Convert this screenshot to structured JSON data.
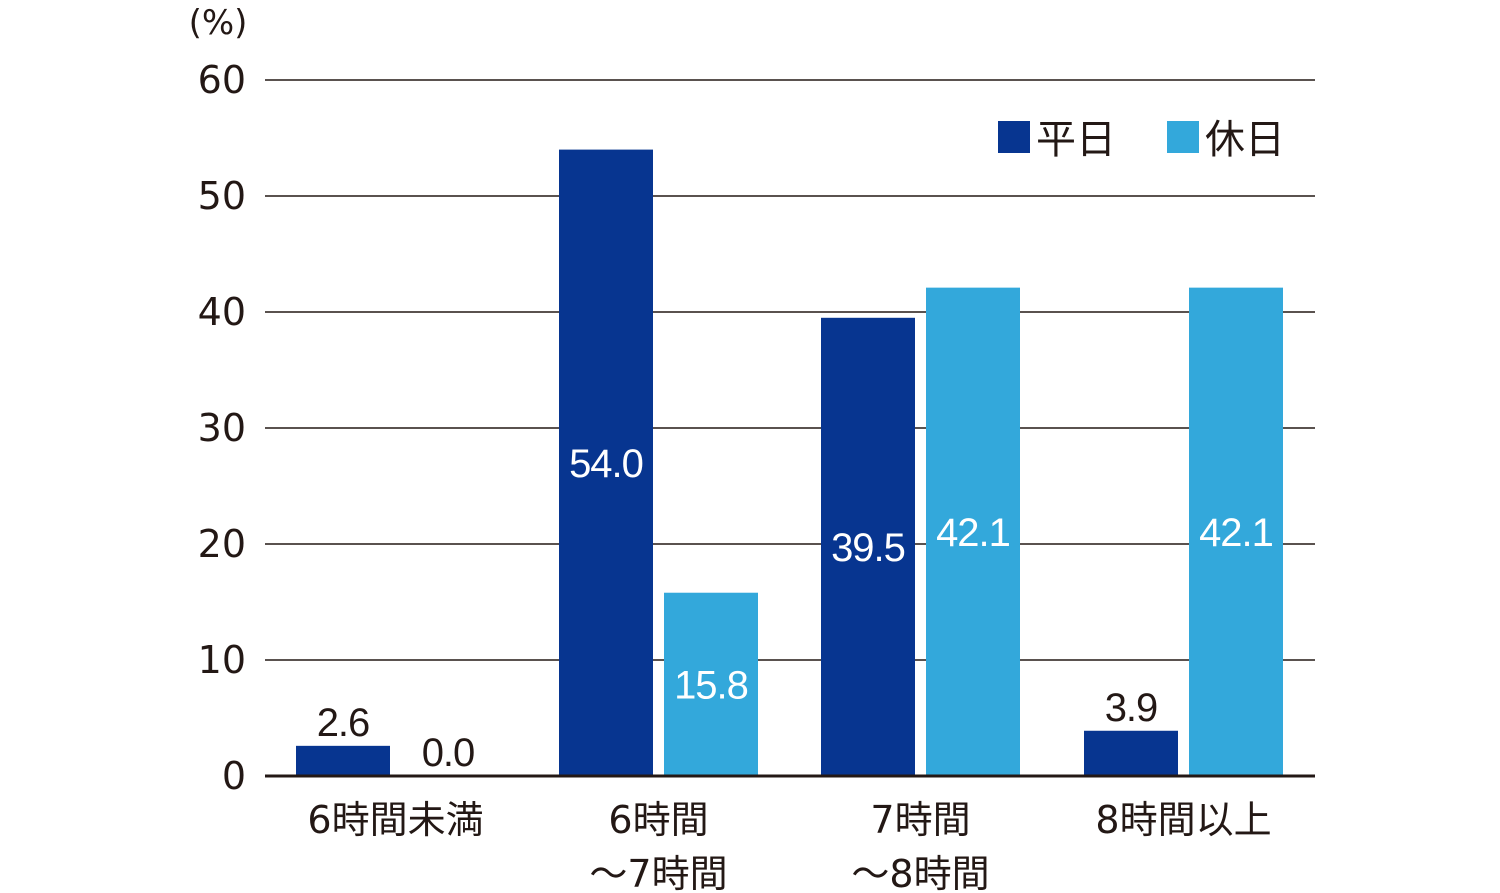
{
  "chart_data": {
    "type": "bar",
    "unit_label": "(%)",
    "ylim": [
      0,
      60
    ],
    "yticks": [
      0,
      10,
      20,
      30,
      40,
      50,
      60
    ],
    "grid": true,
    "legend_position": "top-right",
    "categories": [
      [
        "6時間未満"
      ],
      [
        "6時間",
        "～7時間"
      ],
      [
        "7時間",
        "～8時間"
      ],
      [
        "8時間以上"
      ]
    ],
    "series": [
      {
        "name": "平日",
        "color": "#073590",
        "values": [
          2.6,
          54.0,
          39.5,
          3.9
        ],
        "labels": [
          "2.6",
          "54.0",
          "39.5",
          "3.9"
        ]
      },
      {
        "name": "休日",
        "color": "#33A8DB",
        "values": [
          0.0,
          15.8,
          42.1,
          42.1
        ],
        "labels": [
          "0.0",
          "15.8",
          "42.1",
          "42.1"
        ]
      }
    ]
  }
}
